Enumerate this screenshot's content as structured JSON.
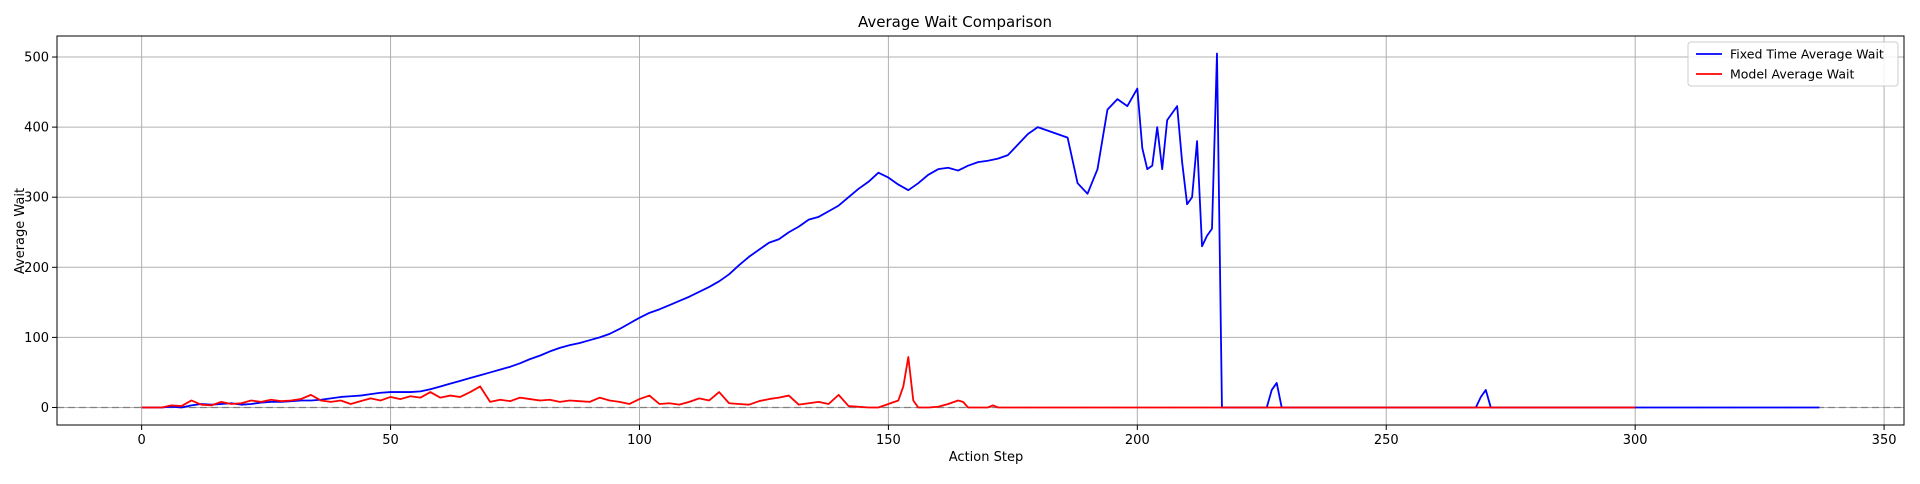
{
  "chart_data": {
    "type": "line",
    "title": "Average Wait Comparison",
    "xlabel": "Action Step",
    "ylabel": "Average Wait",
    "xlim": [
      -17,
      354
    ],
    "ylim": [
      -25,
      530
    ],
    "xticks": [
      0,
      50,
      100,
      150,
      200,
      250,
      300,
      350
    ],
    "yticks": [
      0,
      100,
      200,
      300,
      400,
      500
    ],
    "grid": true,
    "legend": "top-right",
    "reference_line": {
      "y": 0,
      "style": "dashed",
      "color": "#808080"
    },
    "series": [
      {
        "name": "Fixed Time Average Wait",
        "color": "#0000ff",
        "x": [
          0,
          2,
          4,
          6,
          8,
          10,
          12,
          14,
          16,
          18,
          20,
          22,
          24,
          26,
          28,
          30,
          32,
          34,
          36,
          38,
          40,
          42,
          44,
          46,
          48,
          50,
          52,
          54,
          56,
          58,
          60,
          62,
          64,
          66,
          68,
          70,
          72,
          74,
          76,
          78,
          80,
          82,
          84,
          86,
          88,
          90,
          92,
          94,
          96,
          98,
          100,
          102,
          104,
          106,
          108,
          110,
          112,
          114,
          116,
          118,
          120,
          122,
          124,
          126,
          128,
          130,
          132,
          134,
          136,
          138,
          140,
          142,
          144,
          146,
          148,
          150,
          152,
          154,
          156,
          158,
          160,
          162,
          164,
          166,
          168,
          170,
          172,
          174,
          176,
          178,
          180,
          182,
          184,
          186,
          188,
          190,
          192,
          194,
          196,
          198,
          200,
          201,
          202,
          203,
          204,
          205,
          206,
          207,
          208,
          209,
          210,
          211,
          212,
          213,
          214,
          215,
          216,
          217,
          218,
          220,
          222,
          224,
          226,
          227,
          228,
          229,
          230,
          240,
          250,
          260,
          266,
          268,
          269,
          270,
          271,
          272,
          280,
          290,
          300,
          310,
          320,
          330,
          337
        ],
        "y": [
          0,
          0,
          0,
          1,
          0,
          3,
          5,
          4,
          5,
          6,
          4,
          5,
          7,
          8,
          8,
          9,
          10,
          10,
          11,
          13,
          15,
          16,
          17,
          19,
          21,
          22,
          22,
          22,
          23,
          26,
          30,
          34,
          38,
          42,
          46,
          50,
          54,
          58,
          63,
          69,
          74,
          80,
          85,
          89,
          92,
          96,
          100,
          105,
          112,
          120,
          128,
          135,
          140,
          146,
          152,
          158,
          165,
          172,
          180,
          190,
          203,
          215,
          225,
          235,
          240,
          250,
          258,
          268,
          272,
          280,
          288,
          300,
          312,
          322,
          335,
          328,
          318,
          310,
          320,
          332,
          340,
          342,
          338,
          345,
          350,
          352,
          355,
          360,
          375,
          390,
          400,
          395,
          390,
          385,
          320,
          305,
          340,
          425,
          440,
          430,
          455,
          370,
          340,
          345,
          400,
          340,
          410,
          420,
          430,
          350,
          290,
          300,
          380,
          230,
          245,
          255,
          505,
          0,
          0,
          0,
          0,
          0,
          0,
          25,
          35,
          0,
          0,
          0,
          0,
          0,
          0,
          0,
          15,
          25,
          0,
          0,
          0,
          0,
          0,
          0,
          0,
          0,
          0
        ]
      },
      {
        "name": "Model Average Wait",
        "color": "#ff0000",
        "x": [
          0,
          2,
          4,
          6,
          8,
          10,
          12,
          14,
          16,
          18,
          20,
          22,
          24,
          26,
          28,
          30,
          32,
          34,
          36,
          38,
          40,
          42,
          44,
          46,
          48,
          50,
          52,
          54,
          56,
          58,
          60,
          62,
          64,
          66,
          68,
          70,
          72,
          74,
          76,
          78,
          80,
          82,
          84,
          86,
          88,
          90,
          92,
          94,
          96,
          98,
          100,
          102,
          104,
          106,
          108,
          110,
          112,
          114,
          116,
          118,
          120,
          122,
          124,
          126,
          128,
          130,
          132,
          134,
          136,
          138,
          140,
          142,
          144,
          146,
          148,
          150,
          152,
          153,
          154,
          155,
          156,
          158,
          160,
          162,
          164,
          165,
          166,
          170,
          171,
          172,
          180,
          200,
          220,
          240,
          260,
          280,
          300
        ],
        "y": [
          0,
          0,
          0,
          3,
          2,
          10,
          4,
          3,
          8,
          5,
          6,
          10,
          8,
          11,
          9,
          10,
          12,
          18,
          10,
          8,
          10,
          5,
          9,
          13,
          10,
          15,
          12,
          16,
          14,
          22,
          14,
          17,
          15,
          22,
          30,
          8,
          11,
          9,
          14,
          12,
          10,
          11,
          8,
          10,
          9,
          8,
          14,
          10,
          8,
          5,
          12,
          17,
          5,
          6,
          4,
          8,
          13,
          10,
          22,
          6,
          5,
          4,
          9,
          12,
          14,
          17,
          4,
          6,
          8,
          5,
          18,
          2,
          1,
          0,
          0,
          5,
          10,
          30,
          72,
          10,
          0,
          0,
          1,
          5,
          10,
          8,
          0,
          0,
          3,
          0,
          0,
          0,
          0,
          0,
          0,
          0,
          0
        ]
      }
    ]
  }
}
